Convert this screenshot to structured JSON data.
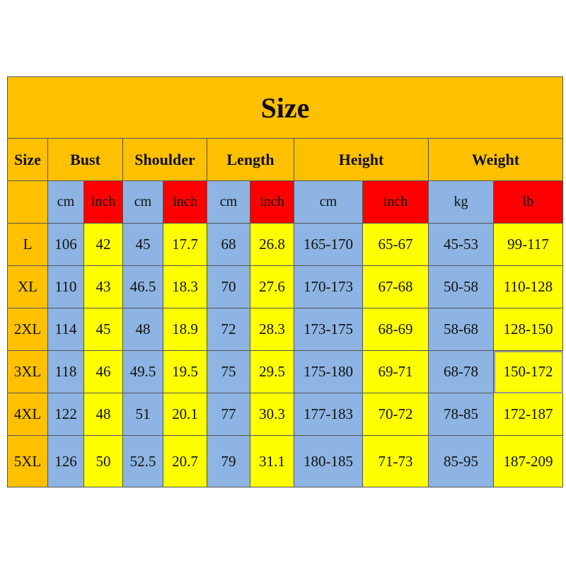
{
  "header": {
    "title": "Size"
  },
  "table": {
    "size_label": "Size",
    "groups": [
      "Bust",
      "Shoulder",
      "Length",
      "Height",
      "Weight"
    ],
    "units": [
      "cm",
      "inch",
      "cm",
      "inch",
      "cm",
      "inch",
      "cm",
      "inch",
      "kg",
      "lb"
    ],
    "rows": [
      [
        "L",
        "106",
        "42",
        "45",
        "17.7",
        "68",
        "26.8",
        "165-170",
        "65-67",
        "45-53",
        "99-117"
      ],
      [
        "XL",
        "110",
        "43",
        "46.5",
        "18.3",
        "70",
        "27.6",
        "170-173",
        "67-68",
        "50-58",
        "110-128"
      ],
      [
        "2XL",
        "114",
        "45",
        "48",
        "18.9",
        "72",
        "28.3",
        "173-175",
        "68-69",
        "58-68",
        "128-150"
      ],
      [
        "3XL",
        "118",
        "46",
        "49.5",
        "19.5",
        "75",
        "29.5",
        "175-180",
        "69-71",
        "68-78",
        "150-172"
      ],
      [
        "4XL",
        "122",
        "48",
        "51",
        "20.1",
        "77",
        "30.3",
        "177-183",
        "70-72",
        "78-85",
        "172-187"
      ],
      [
        "5XL",
        "126",
        "50",
        "52.5",
        "20.7",
        "79",
        "31.1",
        "180-185",
        "71-73",
        "85-95",
        "187-209"
      ]
    ]
  }
}
